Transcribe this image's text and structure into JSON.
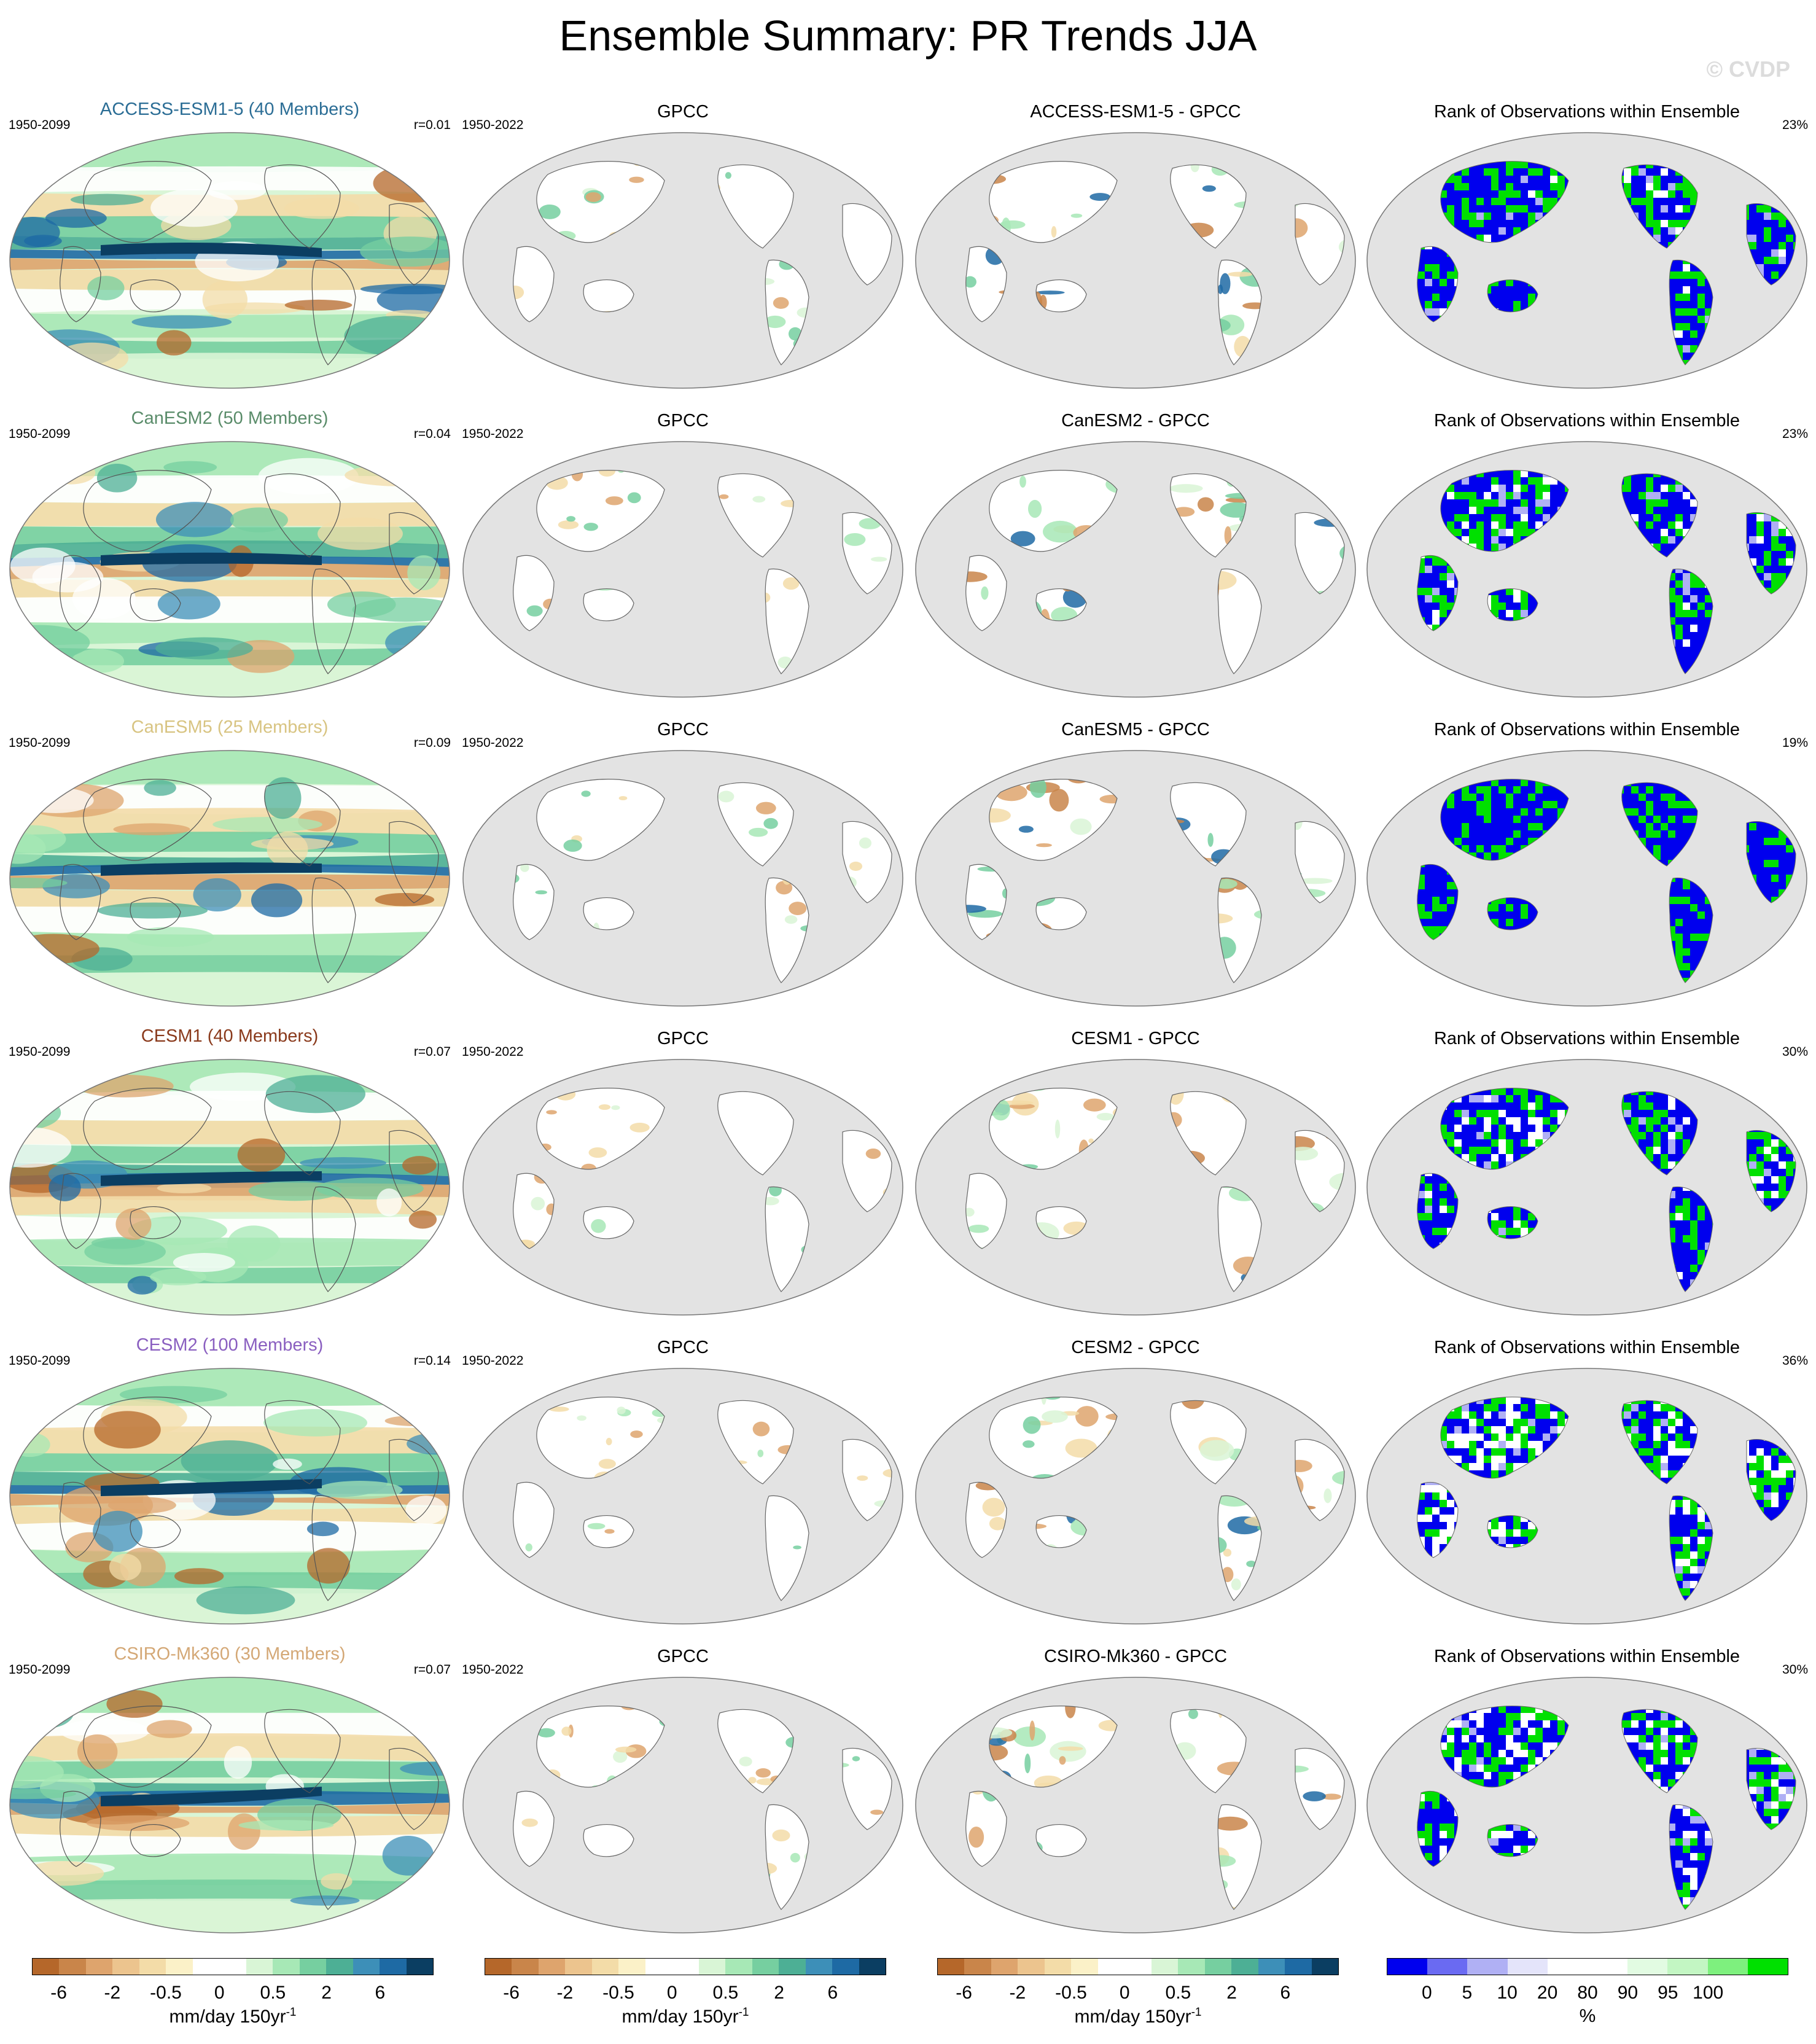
{
  "title": "Ensemble Summary: PR Trends JJA",
  "watermark": "© CVDP",
  "columns": {
    "obs_label": "GPCC",
    "rank_label": "Rank of Observations within Ensemble"
  },
  "rows": [
    {
      "model": "ACCESS-ESM1-5 (40 Members)",
      "model_color": "#2b6d95",
      "period": "1950-2099",
      "r": "r=0.01",
      "obs_period": "1950-2022",
      "diff": "ACCESS-ESM1-5 - GPCC",
      "rank_pct": "23%"
    },
    {
      "model": "CanESM2 (50 Members)",
      "model_color": "#5a8c6a",
      "period": "1950-2099",
      "r": "r=0.04",
      "obs_period": "1950-2022",
      "diff": "CanESM2 - GPCC",
      "rank_pct": "23%"
    },
    {
      "model": "CanESM5 (25 Members)",
      "model_color": "#d8c482",
      "period": "1950-2099",
      "r": "r=0.09",
      "obs_period": "1950-2022",
      "diff": "CanESM5 - GPCC",
      "rank_pct": "19%"
    },
    {
      "model": "CESM1 (40 Members)",
      "model_color": "#8a3a1c",
      "period": "1950-2099",
      "r": "r=0.07",
      "obs_period": "1950-2022",
      "diff": "CESM1 - GPCC",
      "rank_pct": "30%"
    },
    {
      "model": "CESM2 (100 Members)",
      "model_color": "#8a5fc0",
      "period": "1950-2099",
      "r": "r=0.14",
      "obs_period": "1950-2022",
      "diff": "CESM2 - GPCC",
      "rank_pct": "36%"
    },
    {
      "model": "CSIRO-Mk360 (30 Members)",
      "model_color": "#d4a876",
      "period": "1950-2099",
      "r": "r=0.07",
      "obs_period": "1950-2022",
      "diff": "CSIRO-Mk360 - GPCC",
      "rank_pct": "30%"
    }
  ],
  "colorbars": {
    "trend": {
      "colors": [
        "#b5672a",
        "#c9854a",
        "#dea46d",
        "#ecc48e",
        "#f3dca8",
        "#fbf1c8",
        "#ffffff",
        "#ffffff",
        "#d9f5d6",
        "#a7e8b6",
        "#76cfa0",
        "#4daf95",
        "#3d8fb8",
        "#1e6aa4",
        "#0b3e62"
      ],
      "ticks": [
        "-6",
        "-2",
        "-0.5",
        "0",
        "0.5",
        "2",
        "6"
      ],
      "unit": "mm/day 150yr",
      "unit_sup": "-1"
    },
    "rank": {
      "colors": [
        "#0000ee",
        "#6a6af2",
        "#b0b0f4",
        "#e4e4fa",
        "#ffffff",
        "#ffffff",
        "#e2fbe2",
        "#c3f6c3",
        "#7ef07e",
        "#00e000"
      ],
      "ticks": [
        "0",
        "5",
        "10",
        "20",
        "80",
        "90",
        "95",
        "100"
      ],
      "unit": "%"
    }
  }
}
